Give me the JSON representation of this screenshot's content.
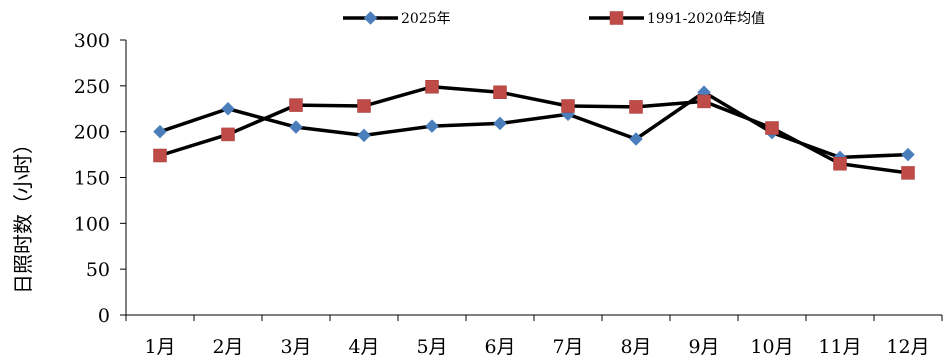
{
  "chart_data": {
    "type": "line",
    "xlabel": "",
    "ylabel": "日照时数（小时）",
    "ylim": [
      0,
      300
    ],
    "yticks": [
      0,
      50,
      100,
      150,
      200,
      250,
      300
    ],
    "categories": [
      "1月",
      "2月",
      "3月",
      "4月",
      "5月",
      "6月",
      "7月",
      "8月",
      "9月",
      "10月",
      "11月",
      "12月"
    ],
    "legend_position": "top",
    "grid": false,
    "series": [
      {
        "name": "2025年",
        "marker": "diamond",
        "marker_color": "#4a7ebb",
        "line_color": "#000000",
        "values": [
          200,
          225,
          205,
          196,
          206,
          209,
          219,
          192,
          243,
          199,
          172,
          175
        ]
      },
      {
        "name": "1991-2020年均值",
        "marker": "square",
        "marker_color": "#be4b48",
        "line_color": "#000000",
        "values": [
          174,
          197,
          229,
          228,
          249,
          243,
          228,
          227,
          233,
          204,
          165,
          155
        ]
      }
    ]
  }
}
